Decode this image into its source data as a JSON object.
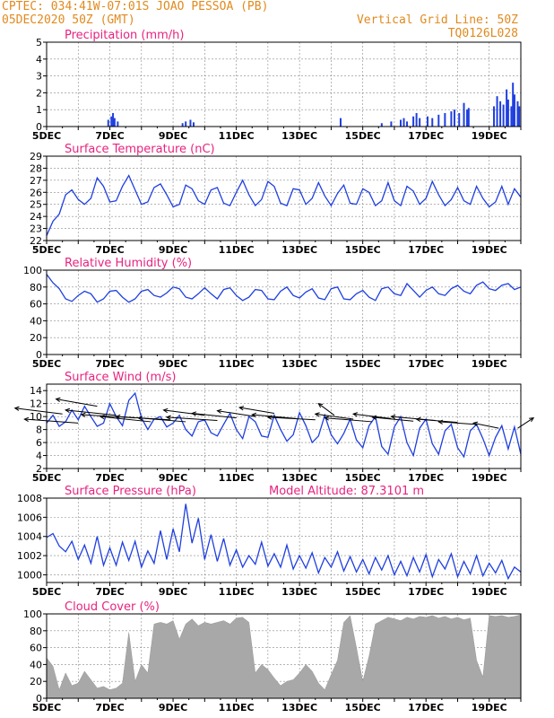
{
  "header": {
    "line1": "CPTEC:   034:41W-07:01S   JOAO PESSOA (PB)",
    "line2": "05DEC2020 50Z (GMT)",
    "grid_note": "Vertical Grid Line: 50Z",
    "model_code": "TQ0126L028"
  },
  "x_axis": {
    "labels": [
      "5DEC",
      "7DEC",
      "9DEC",
      "11DEC",
      "13DEC",
      "15DEC",
      "17DEC",
      "19DEC"
    ],
    "label_days": [
      5,
      7,
      9,
      11,
      13,
      15,
      17,
      19
    ],
    "xlim": [
      5,
      20
    ]
  },
  "colors": {
    "line": "#1f3fe0",
    "bar": "#1f3fe0",
    "title": "#e8237f",
    "header": "#e08a1e",
    "cloud": "#a8a8a8"
  },
  "chart_data": [
    {
      "id": "precip",
      "type": "bar",
      "title": "Precipitation (mm/h)",
      "ylim": [
        0,
        5
      ],
      "yticks": [
        0,
        1,
        2,
        3,
        4,
        5
      ],
      "grid": true,
      "points": [
        [
          6.95,
          0.4
        ],
        [
          7.05,
          0.6
        ],
        [
          7.1,
          0.8
        ],
        [
          7.15,
          0.5
        ],
        [
          7.25,
          0.3
        ],
        [
          9.3,
          0.2
        ],
        [
          9.4,
          0.3
        ],
        [
          9.55,
          0.4
        ],
        [
          9.65,
          0.25
        ],
        [
          14.3,
          0.5
        ],
        [
          15.6,
          0.2
        ],
        [
          15.9,
          0.3
        ],
        [
          16.2,
          0.4
        ],
        [
          16.3,
          0.5
        ],
        [
          16.4,
          0.3
        ],
        [
          16.6,
          0.6
        ],
        [
          16.7,
          0.8
        ],
        [
          16.8,
          0.5
        ],
        [
          17.05,
          0.6
        ],
        [
          17.2,
          0.5
        ],
        [
          17.4,
          0.7
        ],
        [
          17.6,
          0.8
        ],
        [
          17.8,
          0.9
        ],
        [
          17.9,
          1.0
        ],
        [
          18.05,
          0.8
        ],
        [
          18.2,
          1.4
        ],
        [
          18.3,
          1.0
        ],
        [
          18.35,
          1.1
        ],
        [
          19.15,
          1.2
        ],
        [
          19.25,
          1.8
        ],
        [
          19.35,
          1.5
        ],
        [
          19.45,
          1.3
        ],
        [
          19.55,
          2.2
        ],
        [
          19.6,
          1.6
        ],
        [
          19.7,
          1.2
        ],
        [
          19.75,
          2.6
        ],
        [
          19.8,
          1.9
        ],
        [
          19.9,
          1.5
        ],
        [
          19.95,
          1.2
        ]
      ]
    },
    {
      "id": "temp",
      "type": "line",
      "title": "Surface Temperature (nC)",
      "ylim": [
        22,
        29
      ],
      "yticks": [
        22,
        23,
        24,
        25,
        26,
        27,
        28,
        29
      ],
      "grid": true,
      "x": [
        5.0,
        5.2,
        5.4,
        5.6,
        5.8,
        6.0,
        6.2,
        6.4,
        6.6,
        6.8,
        7.0,
        7.2,
        7.4,
        7.6,
        7.8,
        8.0,
        8.2,
        8.4,
        8.6,
        8.8,
        9.0,
        9.2,
        9.4,
        9.6,
        9.8,
        10.0,
        10.2,
        10.4,
        10.6,
        10.8,
        11.0,
        11.2,
        11.4,
        11.6,
        11.8,
        12.0,
        12.2,
        12.4,
        12.6,
        12.8,
        13.0,
        13.2,
        13.4,
        13.6,
        13.8,
        14.0,
        14.2,
        14.4,
        14.6,
        14.8,
        15.0,
        15.2,
        15.4,
        15.6,
        15.8,
        16.0,
        16.2,
        16.4,
        16.6,
        16.8,
        17.0,
        17.2,
        17.4,
        17.6,
        17.8,
        18.0,
        18.2,
        18.4,
        18.6,
        18.8,
        19.0,
        19.2,
        19.4,
        19.6,
        19.8,
        20.0
      ],
      "y": [
        22.4,
        23.6,
        24.2,
        25.8,
        26.2,
        25.4,
        25.0,
        25.5,
        27.2,
        26.5,
        25.2,
        25.3,
        26.5,
        27.4,
        26.2,
        25.0,
        25.2,
        26.4,
        26.7,
        25.8,
        24.8,
        25.0,
        26.6,
        26.3,
        25.3,
        25.0,
        26.2,
        26.4,
        25.1,
        24.9,
        26.0,
        27.0,
        25.8,
        24.9,
        25.4,
        26.9,
        26.5,
        25.1,
        24.9,
        26.3,
        26.2,
        25.0,
        25.5,
        26.8,
        25.7,
        24.9,
        25.9,
        26.6,
        25.1,
        25.0,
        26.3,
        26.0,
        24.9,
        25.3,
        26.8,
        25.3,
        24.9,
        26.5,
        26.1,
        25.0,
        25.5,
        26.9,
        25.8,
        24.9,
        25.4,
        26.4,
        25.3,
        25.0,
        26.5,
        25.5,
        24.8,
        25.2,
        26.5,
        25.0,
        26.3,
        25.6
      ]
    },
    {
      "id": "rh",
      "type": "line",
      "title": "Relative Humidity (%)",
      "ylim": [
        0,
        100
      ],
      "yticks": [
        0,
        20,
        40,
        60,
        80,
        100
      ],
      "grid": true,
      "x": [
        5.0,
        5.2,
        5.4,
        5.6,
        5.8,
        6.0,
        6.2,
        6.4,
        6.6,
        6.8,
        7.0,
        7.2,
        7.4,
        7.6,
        7.8,
        8.0,
        8.2,
        8.4,
        8.6,
        8.8,
        9.0,
        9.2,
        9.4,
        9.6,
        9.8,
        10.0,
        10.2,
        10.4,
        10.6,
        10.8,
        11.0,
        11.2,
        11.4,
        11.6,
        11.8,
        12.0,
        12.2,
        12.4,
        12.6,
        12.8,
        13.0,
        13.2,
        13.4,
        13.6,
        13.8,
        14.0,
        14.2,
        14.4,
        14.6,
        14.8,
        15.0,
        15.2,
        15.4,
        15.6,
        15.8,
        16.0,
        16.2,
        16.4,
        16.6,
        16.8,
        17.0,
        17.2,
        17.4,
        17.6,
        17.8,
        18.0,
        18.2,
        18.4,
        18.6,
        18.8,
        19.0,
        19.2,
        19.4,
        19.6,
        19.8,
        20.0
      ],
      "y": [
        95,
        85,
        78,
        66,
        63,
        70,
        75,
        72,
        62,
        66,
        75,
        76,
        68,
        62,
        66,
        75,
        77,
        70,
        68,
        73,
        80,
        78,
        68,
        66,
        72,
        79,
        72,
        66,
        77,
        79,
        70,
        64,
        68,
        77,
        76,
        66,
        65,
        75,
        80,
        70,
        67,
        74,
        78,
        67,
        65,
        78,
        80,
        66,
        65,
        72,
        76,
        68,
        64,
        78,
        80,
        72,
        70,
        84,
        76,
        68,
        76,
        80,
        72,
        70,
        78,
        82,
        75,
        72,
        82,
        86,
        78,
        76,
        82,
        84,
        77,
        80
      ]
    },
    {
      "id": "wind",
      "type": "line",
      "title": "Surface Wind (m/s)",
      "ylim": [
        2,
        15
      ],
      "yticks": [
        2,
        4,
        6,
        8,
        10,
        12,
        14
      ],
      "grid": true,
      "x": [
        5.0,
        5.2,
        5.4,
        5.6,
        5.8,
        6.0,
        6.2,
        6.4,
        6.6,
        6.8,
        7.0,
        7.2,
        7.4,
        7.6,
        7.8,
        8.0,
        8.2,
        8.4,
        8.6,
        8.8,
        9.0,
        9.2,
        9.4,
        9.6,
        9.8,
        10.0,
        10.2,
        10.4,
        10.6,
        10.8,
        11.0,
        11.2,
        11.4,
        11.6,
        11.8,
        12.0,
        12.2,
        12.4,
        12.6,
        12.8,
        13.0,
        13.2,
        13.4,
        13.6,
        13.8,
        14.0,
        14.2,
        14.4,
        14.6,
        14.8,
        15.0,
        15.2,
        15.4,
        15.6,
        15.8,
        16.0,
        16.2,
        16.4,
        16.6,
        16.8,
        17.0,
        17.2,
        17.4,
        17.6,
        17.8,
        18.0,
        18.2,
        18.4,
        18.6,
        18.8,
        19.0,
        19.2,
        19.4,
        19.6,
        19.8,
        20.0
      ],
      "y": [
        9.0,
        10.2,
        8.5,
        9.2,
        11.0,
        9.5,
        11.6,
        10.0,
        8.5,
        9.0,
        12.0,
        10.0,
        8.6,
        12.5,
        13.6,
        9.8,
        8.0,
        9.6,
        10.0,
        8.4,
        9.0,
        10.2,
        8.0,
        7.0,
        9.2,
        9.5,
        7.5,
        7.0,
        8.8,
        10.5,
        8.0,
        6.6,
        10.0,
        9.2,
        7.0,
        6.8,
        10.2,
        8.0,
        6.2,
        7.2,
        10.6,
        8.6,
        6.0,
        7.0,
        10.2,
        7.2,
        5.8,
        7.4,
        9.6,
        6.4,
        5.2,
        8.6,
        10.0,
        5.4,
        4.2,
        8.4,
        10.0,
        6.0,
        4.0,
        8.2,
        9.6,
        5.8,
        4.2,
        7.8,
        8.8,
        5.2,
        3.8,
        7.8,
        8.8,
        6.6,
        4.0,
        6.8,
        8.6,
        5.0,
        8.4,
        4.2
      ],
      "arrows": [
        [
          5.5,
          10.4,
          -1.5,
          0.9
        ],
        [
          6.0,
          9.0,
          -1.7,
          0.6
        ],
        [
          6.6,
          11.6,
          -1.3,
          1.1
        ],
        [
          7.2,
          10.2,
          -1.6,
          0.8
        ],
        [
          7.8,
          9.8,
          -1.7,
          0.5
        ],
        [
          8.3,
          9.2,
          -1.6,
          0.8
        ],
        [
          8.9,
          9.5,
          -1.7,
          0.5
        ],
        [
          9.4,
          9.2,
          -1.5,
          0.6
        ],
        [
          10.0,
          10.2,
          -1.3,
          0.8
        ],
        [
          10.4,
          9.4,
          -1.6,
          0.5
        ],
        [
          11.0,
          9.8,
          -1.4,
          0.7
        ],
        [
          11.6,
          10.0,
          -1.2,
          0.9
        ],
        [
          12.2,
          10.5,
          -1.1,
          0.9
        ],
        [
          12.9,
          9.7,
          -1.4,
          0.6
        ],
        [
          13.5,
          9.5,
          -1.5,
          0.4
        ],
        [
          14.1,
          10.2,
          -0.5,
          1.8
        ],
        [
          14.7,
          9.6,
          -1.2,
          0.8
        ],
        [
          15.3,
          9.2,
          -1.5,
          0.6
        ],
        [
          15.9,
          9.7,
          -1.2,
          0.7
        ],
        [
          16.6,
          9.3,
          -1.3,
          0.6
        ],
        [
          17.3,
          9.4,
          -1.4,
          0.6
        ],
        [
          18.0,
          9.1,
          -1.3,
          0.5
        ],
        [
          18.6,
          8.8,
          -1.2,
          0.4
        ],
        [
          19.3,
          8.2,
          -0.8,
          0.8
        ],
        [
          19.9,
          8.2,
          0.5,
          1.6
        ]
      ]
    },
    {
      "id": "pres",
      "type": "line",
      "title": "Surface Pressure (hPa)",
      "annotation": "Model Altitude: 87.3101 m",
      "ylim": [
        999.2,
        1008
      ],
      "yticks": [
        1000,
        1002,
        1004,
        1006,
        1008
      ],
      "grid": true,
      "x": [
        5.0,
        5.2,
        5.4,
        5.6,
        5.8,
        6.0,
        6.2,
        6.4,
        6.6,
        6.8,
        7.0,
        7.2,
        7.4,
        7.6,
        7.8,
        8.0,
        8.2,
        8.4,
        8.6,
        8.8,
        9.0,
        9.2,
        9.4,
        9.6,
        9.8,
        10.0,
        10.2,
        10.4,
        10.6,
        10.8,
        11.0,
        11.2,
        11.4,
        11.6,
        11.8,
        12.0,
        12.2,
        12.4,
        12.6,
        12.8,
        13.0,
        13.2,
        13.4,
        13.6,
        13.8,
        14.0,
        14.2,
        14.4,
        14.6,
        14.8,
        15.0,
        15.2,
        15.4,
        15.6,
        15.8,
        16.0,
        16.2,
        16.4,
        16.6,
        16.8,
        17.0,
        17.2,
        17.4,
        17.6,
        17.8,
        18.0,
        18.2,
        18.4,
        18.6,
        18.8,
        19.0,
        19.2,
        19.4,
        19.6,
        19.8,
        20.0
      ],
      "y": [
        1003.9,
        1004.3,
        1003.0,
        1002.4,
        1003.5,
        1001.6,
        1003.1,
        1001.2,
        1004.0,
        1001.0,
        1002.8,
        1001.0,
        1003.4,
        1001.5,
        1003.5,
        1000.8,
        1002.5,
        1001.2,
        1004.6,
        1001.6,
        1004.8,
        1002.4,
        1007.4,
        1003.3,
        1005.9,
        1001.6,
        1004.2,
        1001.4,
        1003.8,
        1001.0,
        1002.6,
        1000.8,
        1002.0,
        1001.1,
        1003.4,
        1000.9,
        1002.2,
        1000.8,
        1003.1,
        1000.6,
        1002.0,
        1000.7,
        1002.3,
        1000.2,
        1001.8,
        1000.8,
        1002.4,
        1000.4,
        1001.9,
        1000.3,
        1001.6,
        1000.1,
        1001.8,
        1000.5,
        1002.0,
        1000.0,
        1001.4,
        999.9,
        1001.8,
        1000.3,
        1002.1,
        999.8,
        1001.6,
        1000.6,
        1002.2,
        999.8,
        1001.4,
        1000.1,
        1002.0,
        999.9,
        1001.2,
        1000.2,
        1001.5,
        999.6,
        1000.8,
        1000.3
      ]
    },
    {
      "id": "cloud",
      "type": "area",
      "title": "Cloud Cover (%)",
      "ylim": [
        0,
        100
      ],
      "yticks": [
        0,
        20,
        40,
        60,
        80,
        100
      ],
      "grid": true,
      "x": [
        5.0,
        5.2,
        5.4,
        5.6,
        5.8,
        6.0,
        6.2,
        6.4,
        6.6,
        6.8,
        7.0,
        7.2,
        7.4,
        7.6,
        7.8,
        8.0,
        8.2,
        8.4,
        8.6,
        8.8,
        9.0,
        9.2,
        9.4,
        9.6,
        9.8,
        10.0,
        10.2,
        10.4,
        10.6,
        10.8,
        11.0,
        11.2,
        11.4,
        11.6,
        11.8,
        12.0,
        12.2,
        12.4,
        12.6,
        12.8,
        13.0,
        13.2,
        13.4,
        13.6,
        13.8,
        14.0,
        14.2,
        14.4,
        14.6,
        14.8,
        15.0,
        15.2,
        15.4,
        15.6,
        15.8,
        16.0,
        16.2,
        16.4,
        16.6,
        16.8,
        17.0,
        17.2,
        17.4,
        17.6,
        17.8,
        18.0,
        18.2,
        18.4,
        18.6,
        18.8,
        19.0,
        19.2,
        19.4,
        19.6,
        19.8,
        20.0
      ],
      "y": [
        48,
        38,
        10,
        30,
        15,
        18,
        32,
        22,
        12,
        14,
        10,
        12,
        18,
        78,
        20,
        40,
        30,
        88,
        90,
        88,
        92,
        70,
        88,
        94,
        86,
        90,
        88,
        90,
        92,
        88,
        95,
        96,
        90,
        30,
        40,
        34,
        24,
        15,
        20,
        22,
        30,
        40,
        32,
        18,
        10,
        28,
        45,
        90,
        98,
        60,
        20,
        50,
        88,
        92,
        96,
        94,
        92,
        96,
        94,
        97,
        96,
        98,
        95,
        97,
        94,
        96,
        93,
        95,
        45,
        25,
        98,
        97,
        98,
        96,
        97,
        99
      ]
    }
  ]
}
